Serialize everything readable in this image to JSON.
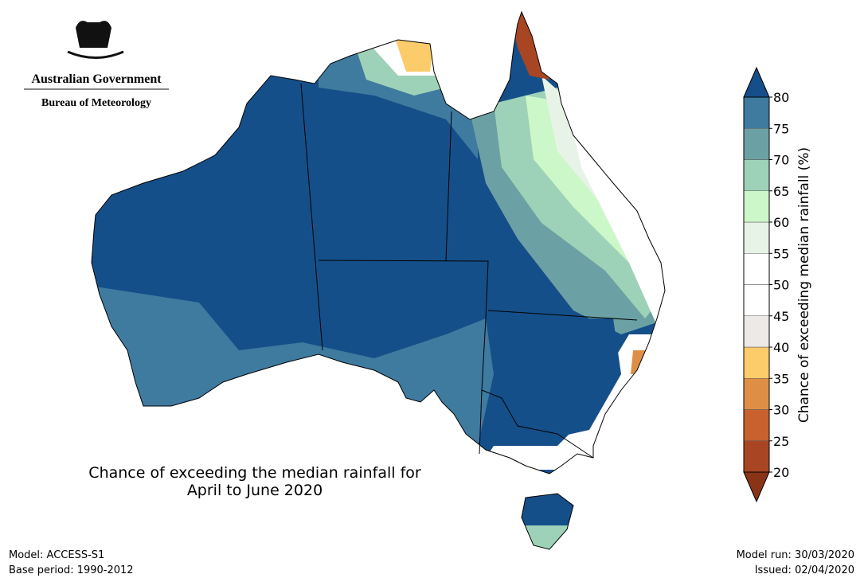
{
  "header": {
    "government": "Australian Government",
    "agency": "Bureau of Meteorology"
  },
  "map": {
    "title_lines": [
      "Chance of exceeding the median rainfall for",
      "April to June 2020"
    ]
  },
  "colorbar": {
    "label": "Chance of exceeding median rainfall (%)",
    "ticks": [
      20,
      25,
      30,
      35,
      40,
      45,
      50,
      55,
      60,
      65,
      70,
      75,
      80
    ],
    "colors": [
      "#a84624",
      "#c9612e",
      "#de8f45",
      "#fccb6a",
      "#ece9e6",
      "#ffffff",
      "#ffffff",
      "#e8f3e8",
      "#cbf7c9",
      "#9ed2b8",
      "#6ba1a4",
      "#3f7a9f"
    ],
    "under_color": "#8a3417",
    "over_color": "#154f89"
  },
  "footer": {
    "model": "Model: ACCESS-S1",
    "base_period": "Base period: 1990-2012",
    "model_run": "Model run: 30/03/2020",
    "issued": "Issued: 02/04/2020"
  }
}
